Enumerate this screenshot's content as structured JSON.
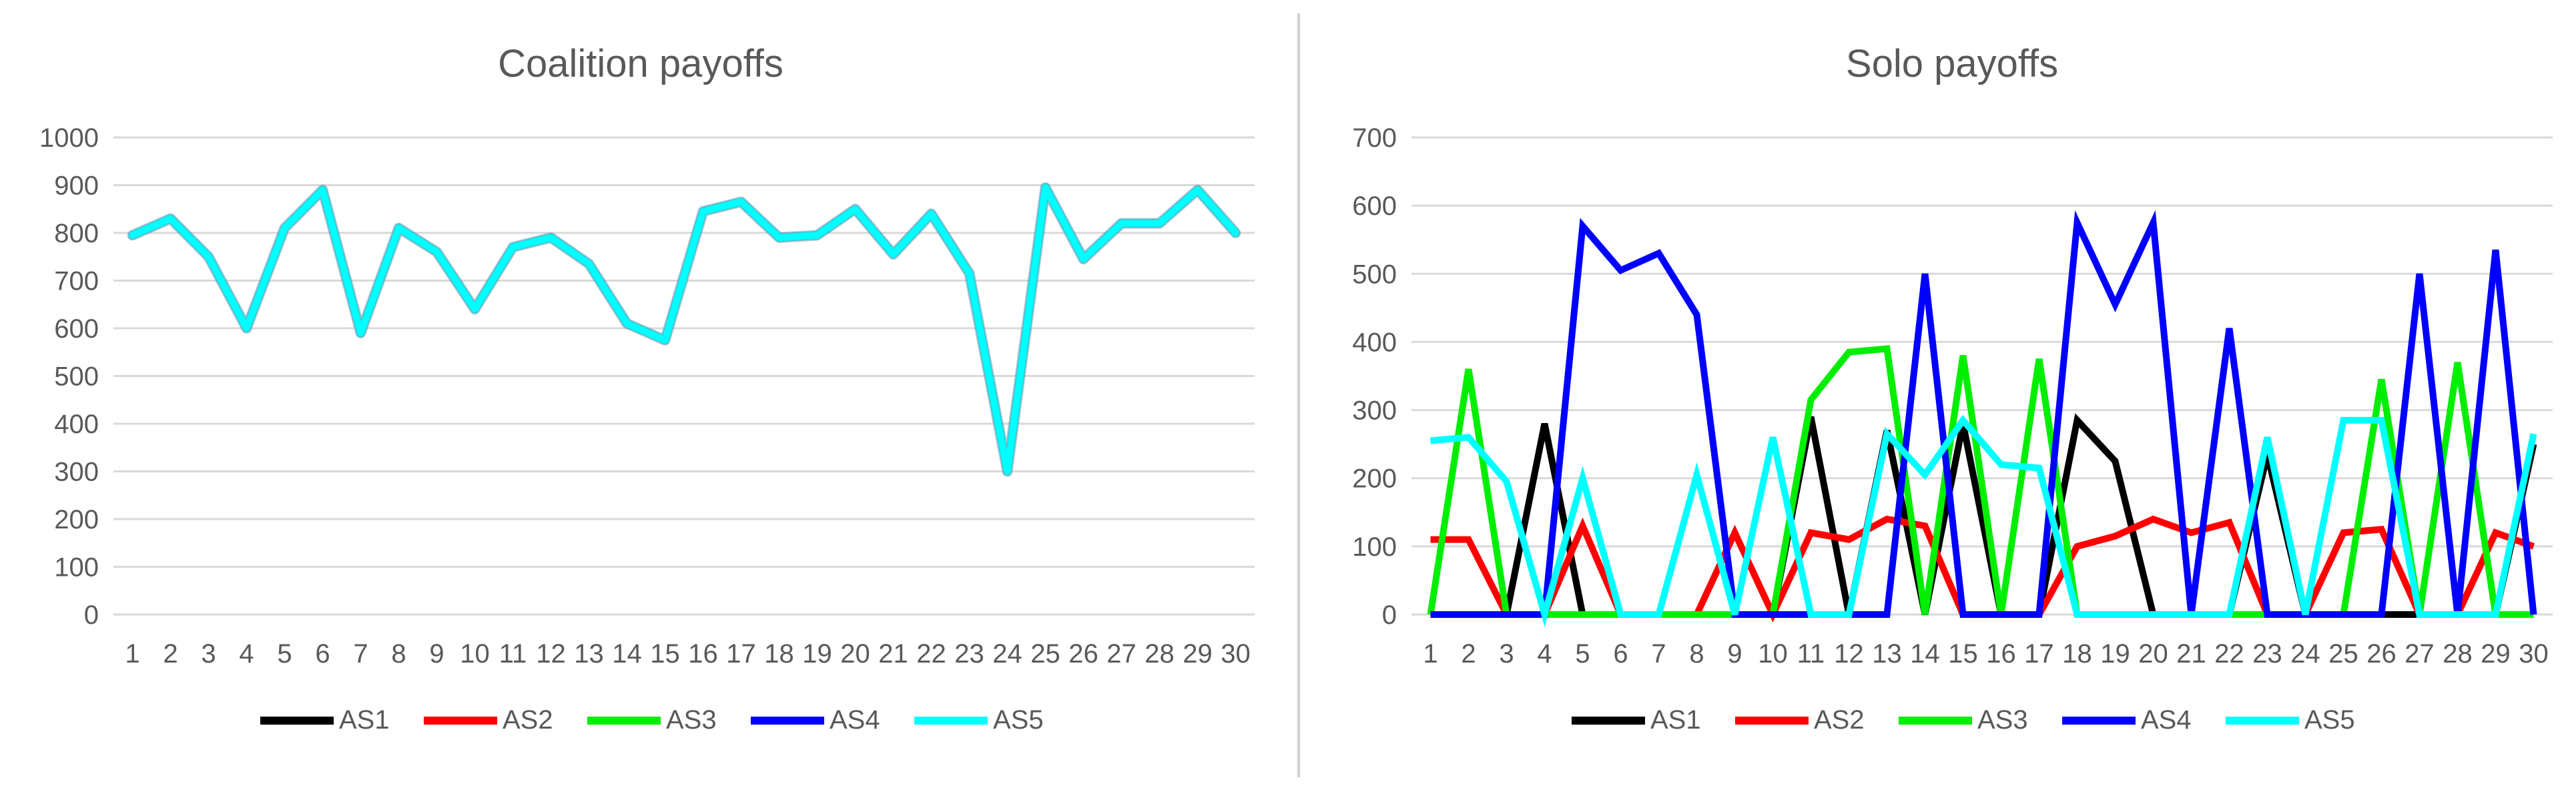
{
  "chart_data": [
    {
      "type": "line",
      "title": "Coalition payoffs",
      "xlabel": "",
      "ylabel": "",
      "x": [
        1,
        2,
        3,
        4,
        5,
        6,
        7,
        8,
        9,
        10,
        11,
        12,
        13,
        14,
        15,
        16,
        17,
        18,
        19,
        20,
        21,
        22,
        23,
        24,
        25,
        26,
        27,
        28,
        29,
        30
      ],
      "ylim": [
        0,
        1000
      ],
      "yticks": [
        0,
        100,
        200,
        300,
        400,
        500,
        600,
        700,
        800,
        900,
        1000
      ],
      "grid": true,
      "legend": "bottom",
      "series": [
        {
          "name": "AS1",
          "color": "#000000",
          "values": [
            795,
            830,
            750,
            600,
            810,
            890,
            590,
            810,
            760,
            640,
            770,
            790,
            735,
            610,
            575,
            845,
            865,
            790,
            795,
            850,
            755,
            840,
            715,
            300,
            895,
            745,
            820,
            820,
            890,
            800
          ]
        },
        {
          "name": "AS2",
          "color": "#ff0000",
          "values": [
            795,
            830,
            750,
            600,
            810,
            890,
            590,
            810,
            760,
            640,
            770,
            790,
            735,
            610,
            575,
            845,
            865,
            790,
            795,
            850,
            755,
            840,
            715,
            300,
            895,
            745,
            820,
            820,
            890,
            800
          ]
        },
        {
          "name": "AS3",
          "color": "#00ee00",
          "values": [
            795,
            830,
            750,
            600,
            810,
            890,
            590,
            810,
            760,
            640,
            770,
            790,
            735,
            610,
            575,
            845,
            865,
            790,
            795,
            850,
            755,
            840,
            715,
            300,
            895,
            745,
            820,
            820,
            890,
            800
          ]
        },
        {
          "name": "AS4",
          "color": "#0000ff",
          "values": [
            795,
            830,
            750,
            600,
            810,
            890,
            590,
            810,
            760,
            640,
            770,
            790,
            735,
            610,
            575,
            845,
            865,
            790,
            795,
            850,
            755,
            840,
            715,
            300,
            895,
            745,
            820,
            820,
            890,
            800
          ]
        },
        {
          "name": "AS5",
          "color": "#00ffff",
          "values": [
            795,
            830,
            750,
            600,
            810,
            890,
            590,
            810,
            760,
            640,
            770,
            790,
            735,
            610,
            575,
            845,
            865,
            790,
            795,
            850,
            755,
            840,
            715,
            300,
            895,
            745,
            820,
            820,
            890,
            800
          ]
        }
      ]
    },
    {
      "type": "line",
      "title": "Solo payoffs",
      "xlabel": "",
      "ylabel": "",
      "x": [
        1,
        2,
        3,
        4,
        5,
        6,
        7,
        8,
        9,
        10,
        11,
        12,
        13,
        14,
        15,
        16,
        17,
        18,
        19,
        20,
        21,
        22,
        23,
        24,
        25,
        26,
        27,
        28,
        29,
        30
      ],
      "ylim": [
        0,
        700
      ],
      "yticks": [
        0,
        100,
        200,
        300,
        400,
        500,
        600,
        700
      ],
      "grid": true,
      "legend": "bottom",
      "series": [
        {
          "name": "AS1",
          "color": "#000000",
          "values": [
            0,
            0,
            0,
            280,
            0,
            0,
            0,
            0,
            0,
            0,
            290,
            0,
            270,
            0,
            280,
            0,
            0,
            285,
            225,
            0,
            0,
            0,
            235,
            0,
            0,
            0,
            0,
            0,
            0,
            250
          ]
        },
        {
          "name": "AS2",
          "color": "#ff0000",
          "values": [
            110,
            110,
            0,
            0,
            130,
            0,
            0,
            0,
            120,
            0,
            120,
            110,
            140,
            130,
            0,
            0,
            0,
            100,
            115,
            140,
            120,
            135,
            0,
            0,
            120,
            125,
            0,
            0,
            120,
            100
          ]
        },
        {
          "name": "AS3",
          "color": "#00ee00",
          "values": [
            0,
            360,
            0,
            0,
            0,
            0,
            0,
            0,
            0,
            0,
            315,
            385,
            390,
            0,
            380,
            0,
            375,
            0,
            0,
            0,
            0,
            0,
            0,
            0,
            0,
            345,
            0,
            370,
            0,
            0
          ]
        },
        {
          "name": "AS4",
          "color": "#0000ff",
          "values": [
            0,
            0,
            0,
            0,
            570,
            505,
            530,
            440,
            0,
            0,
            0,
            0,
            0,
            500,
            0,
            0,
            0,
            575,
            455,
            575,
            0,
            420,
            0,
            0,
            0,
            0,
            500,
            0,
            535,
            0
          ]
        },
        {
          "name": "AS5",
          "color": "#00ffff",
          "values": [
            255,
            260,
            195,
            0,
            200,
            0,
            0,
            205,
            0,
            260,
            0,
            0,
            265,
            205,
            285,
            220,
            215,
            0,
            0,
            0,
            0,
            0,
            260,
            0,
            285,
            285,
            0,
            0,
            0,
            265
          ]
        }
      ]
    }
  ]
}
